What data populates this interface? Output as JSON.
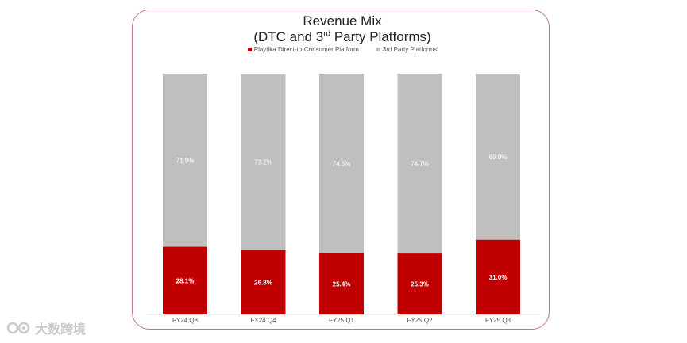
{
  "colors": {
    "dtc": "#c00000",
    "third_party": "#bfbfbf",
    "frame": "#c2797e"
  },
  "chart_data": {
    "type": "bar",
    "stacked": true,
    "percent": true,
    "title_line1": "Revenue Mix",
    "title_line2_prefix": "(DTC and 3",
    "title_line2_sup": "rd",
    "title_line2_suffix": " Party Platforms)",
    "categories": [
      "FY24 Q3",
      "FY24 Q4",
      "FY25 Q1",
      "FY25 Q2",
      "FY25 Q3"
    ],
    "series": [
      {
        "name": "Playtika Direct-to-Consumer Platform",
        "values": [
          28.1,
          26.8,
          25.4,
          25.3,
          31.0
        ],
        "labels": [
          "28.1%",
          "26.8%",
          "25.4%",
          "25.3%",
          "31.0%"
        ]
      },
      {
        "name": "3rd Party Platforms",
        "values": [
          71.9,
          73.2,
          74.6,
          74.7,
          69.0
        ],
        "labels": [
          "71.9%",
          "73.2%",
          "74.6%",
          "74.7%",
          "69.0%"
        ]
      }
    ],
    "ylim": [
      0,
      100
    ],
    "legend_position": "top",
    "grid": false
  },
  "watermark": {
    "text": "大数跨境"
  }
}
